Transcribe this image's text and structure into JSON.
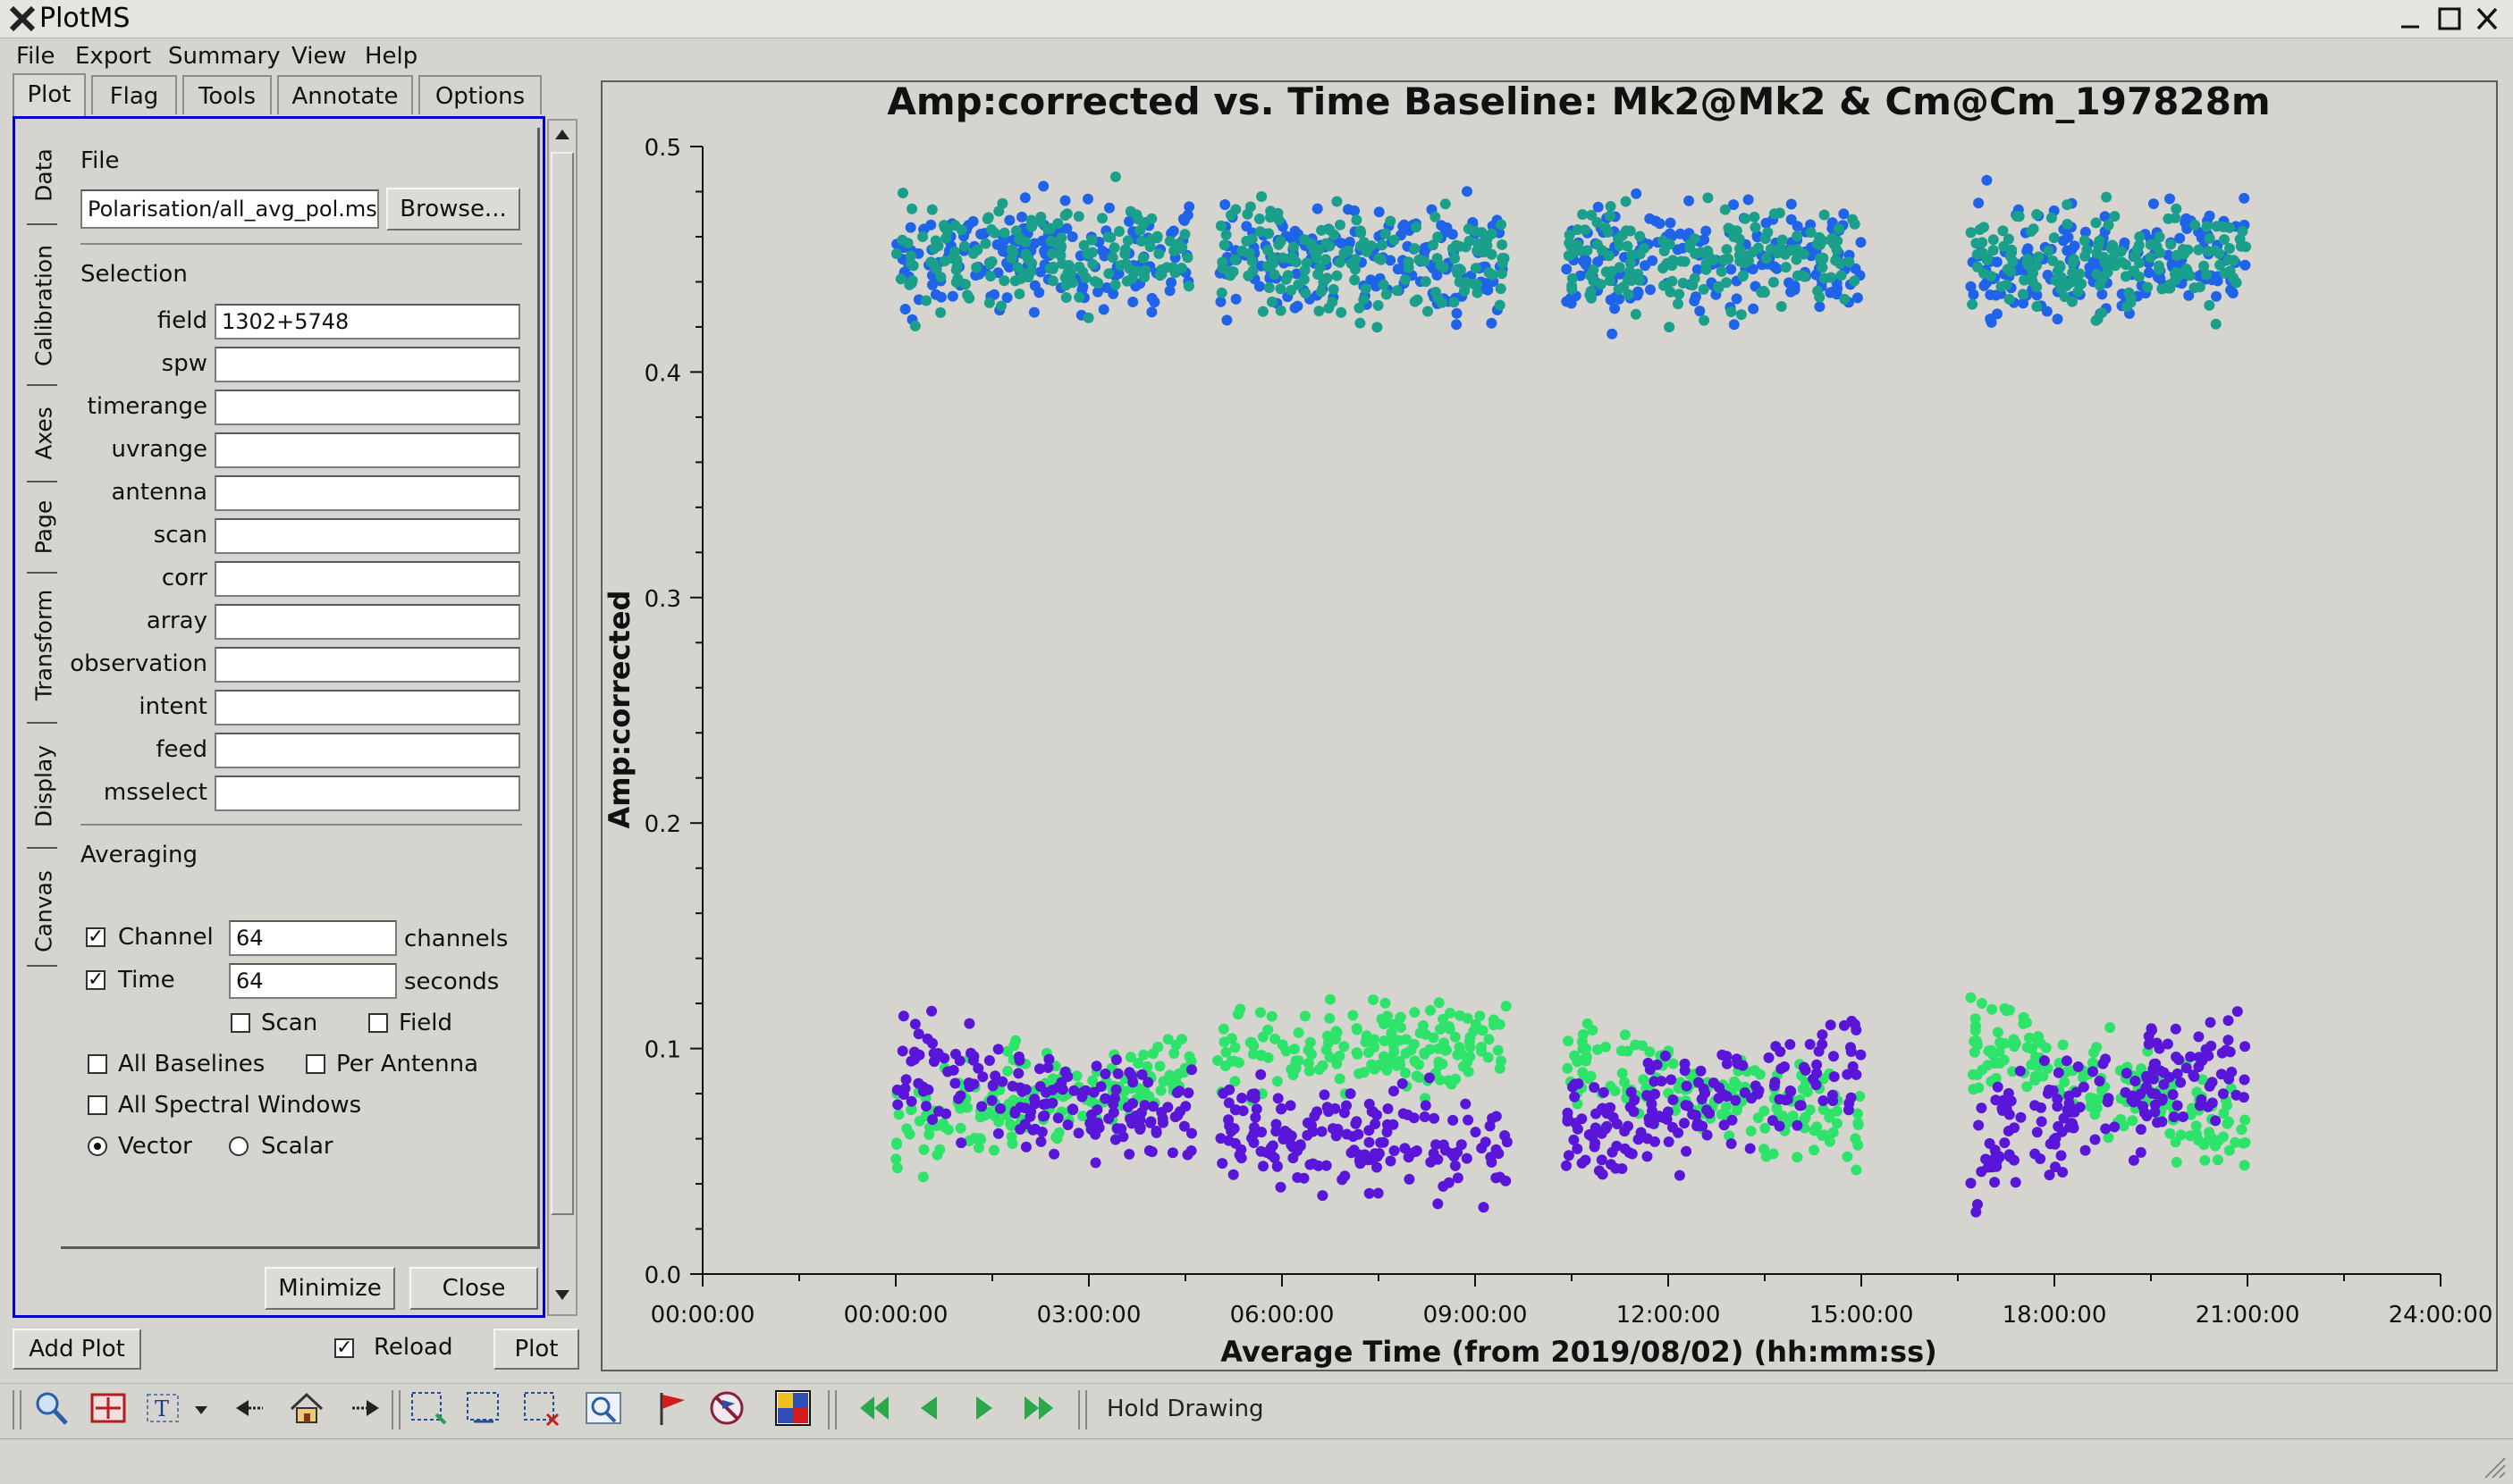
{
  "window": {
    "title": "PlotMS"
  },
  "menu": [
    "File",
    "Export",
    "Summary",
    "View",
    "Help"
  ],
  "tabs": [
    "Plot",
    "Flag",
    "Tools",
    "Annotate",
    "Options"
  ],
  "side_tabs": [
    "Data",
    "Calibration",
    "Axes",
    "Page",
    "Transform",
    "Display",
    "Canvas"
  ],
  "file": {
    "section": "File",
    "path": "Polarisation/all_avg_pol.ms",
    "browse_label": "Browse..."
  },
  "selection": {
    "section": "Selection",
    "fields": [
      {
        "label": "field",
        "value": "1302+5748"
      },
      {
        "label": "spw",
        "value": ""
      },
      {
        "label": "timerange",
        "value": ""
      },
      {
        "label": "uvrange",
        "value": ""
      },
      {
        "label": "antenna",
        "value": ""
      },
      {
        "label": "scan",
        "value": ""
      },
      {
        "label": "corr",
        "value": ""
      },
      {
        "label": "array",
        "value": ""
      },
      {
        "label": "observation",
        "value": ""
      },
      {
        "label": "intent",
        "value": ""
      },
      {
        "label": "feed",
        "value": ""
      },
      {
        "label": "msselect",
        "value": ""
      }
    ]
  },
  "averaging": {
    "section": "Averaging",
    "channel": {
      "label": "Channel",
      "checked": true,
      "value": "64",
      "unit": "channels"
    },
    "time": {
      "label": "Time",
      "checked": true,
      "value": "64",
      "unit": "seconds"
    },
    "scan_label": "Scan",
    "field_label": "Field",
    "all_baselines_label": "All Baselines",
    "per_antenna_label": "Per Antenna",
    "all_spw_label": "All Spectral Windows",
    "vector_label": "Vector",
    "scalar_label": "Scalar",
    "mode": "Vector"
  },
  "buttons": {
    "minimize": "Minimize",
    "close": "Close",
    "add_plot": "Add Plot",
    "reload": "Reload",
    "plot": "Plot"
  },
  "toolbar": {
    "hold_drawing": "Hold Drawing",
    "icons": [
      "zoom-icon",
      "pan-icon",
      "annotate-text-icon",
      "dropdown-arrow-icon",
      "back-icon",
      "home-icon",
      "forward-icon",
      "select-region-icon",
      "subtract-region-icon",
      "clear-regions-icon",
      "locate-icon",
      "flag-icon",
      "unflag-icon",
      "flag-all-icon",
      "first-iteration-icon",
      "previous-iteration-icon",
      "next-iteration-icon",
      "last-iteration-icon"
    ]
  },
  "colors": {
    "accent_frame": "#0000c8",
    "series_blue": "#1f64e8",
    "series_teal": "#1aa08a",
    "series_green": "#2ee36a",
    "series_purple": "#5a16d8"
  },
  "chart_data": {
    "type": "scatter",
    "title": "Amp:corrected vs. Time Baseline: Mk2@Mk2 & Cm@Cm_197828m",
    "xlabel": "Average Time (from 2019/08/02) (hh:mm:ss)",
    "ylabel": "Amp:corrected",
    "x_ticks": [
      "00:00:00",
      "00:00:00",
      "03:00:00",
      "06:00:00",
      "09:00:00",
      "12:00:00",
      "15:00:00",
      "18:00:00",
      "21:00:00",
      "24:00:00"
    ],
    "y_ticks": [
      "0.0",
      "0.1",
      "0.2",
      "0.3",
      "0.4",
      "0.5"
    ],
    "ylim": [
      0.0,
      0.5
    ],
    "xlim_hours": [
      -3.0,
      24.0
    ],
    "scans_hours": [
      [
        0.0,
        4.6
      ],
      [
        5.0,
        9.5
      ],
      [
        10.4,
        15.0
      ],
      [
        16.7,
        21.0
      ]
    ],
    "series": [
      {
        "color": "#1f64e8",
        "level_by_scan": [
          0.45,
          0.45,
          0.45,
          0.45
        ],
        "spread": 0.012
      },
      {
        "color": "#1aa08a",
        "level_by_scan": [
          0.45,
          0.45,
          0.45,
          0.45
        ],
        "spread": 0.012
      },
      {
        "color": "#2ee36a",
        "start_by_scan": [
          0.065,
          0.1,
          0.095,
          0.105
        ],
        "end_by_scan": [
          0.09,
          0.103,
          0.065,
          0.06
        ],
        "spread": 0.01
      },
      {
        "color": "#5a16d8",
        "start_by_scan": [
          0.095,
          0.062,
          0.06,
          0.055
        ],
        "end_by_scan": [
          0.065,
          0.058,
          0.095,
          0.1
        ],
        "spread": 0.012
      }
    ]
  }
}
